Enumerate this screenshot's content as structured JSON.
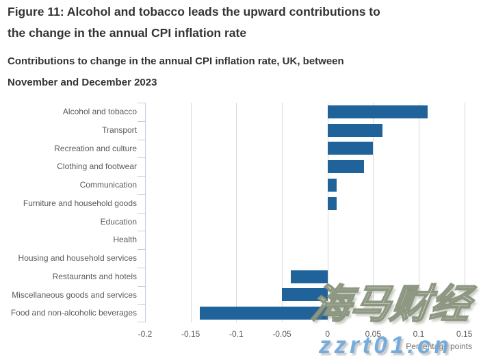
{
  "figure": {
    "title_lines": [
      "Figure 11: Alcohol and tobacco leads the upward contributions to",
      "the change in the annual CPI inflation rate"
    ],
    "subtitle_lines": [
      "Contributions to change in the annual CPI inflation rate, UK, between",
      "November and December 2023"
    ]
  },
  "chart_data": {
    "type": "bar",
    "orientation": "horizontal",
    "title": "Figure 11: Alcohol and tobacco leads the upward contributions to the change in the annual CPI inflation rate",
    "subtitle": "Contributions to change in the annual CPI inflation rate, UK, between November and December 2023",
    "categories": [
      "Alcohol and tobacco",
      "Transport",
      "Recreation and culture",
      "Clothing and footwear",
      "Communication",
      "Furniture and household goods",
      "Education",
      "Health",
      "Housing and household services",
      "Restaurants and hotels",
      "Miscellaneous goods and services",
      "Food and non-alcoholic beverages"
    ],
    "values": [
      0.11,
      0.06,
      0.05,
      0.04,
      0.01,
      0.01,
      0.0,
      0.0,
      0.0,
      -0.04,
      -0.05,
      -0.14
    ],
    "xlabel": "Percentage points",
    "xlim": [
      -0.2,
      0.163
    ],
    "xticks": [
      -0.2,
      -0.15,
      -0.1,
      -0.05,
      0,
      0.05,
      0.1,
      0.15
    ],
    "xtick_labels": [
      "-0.2",
      "-0.15",
      "-0.1",
      "-0.05",
      "0",
      "0.05",
      "0.1",
      "0.15"
    ],
    "grid": true,
    "legend": "none",
    "bar_color": "#20639b",
    "gridline_color": "#d9d9d9",
    "axis_line_color": "#c2cde2",
    "label_color": "#595959"
  },
  "watermarks": {
    "cjk_text": "海马财经",
    "url_text": "zzrt01.cn"
  }
}
